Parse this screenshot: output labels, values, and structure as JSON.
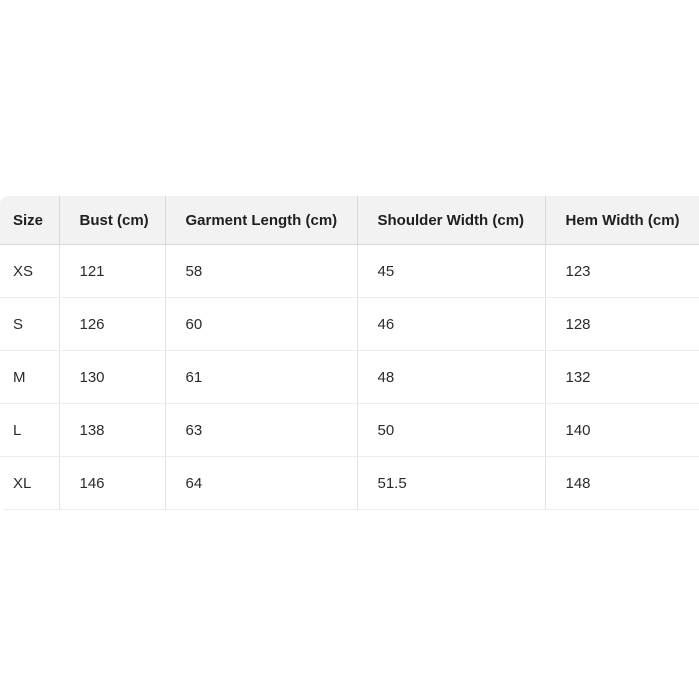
{
  "size_chart": {
    "columns": [
      "Size",
      "Bust (cm)",
      "Garment Length (cm)",
      "Shoulder Width (cm)",
      "Hem Width (cm)"
    ],
    "rows": [
      [
        "XS",
        "121",
        "58",
        "45",
        "123"
      ],
      [
        "S",
        "126",
        "60",
        "46",
        "128"
      ],
      [
        "M",
        "130",
        "61",
        "48",
        "132"
      ],
      [
        "L",
        "138",
        "63",
        "50",
        "140"
      ],
      [
        "XL",
        "146",
        "64",
        "51.5",
        "148"
      ]
    ]
  },
  "colors": {
    "page_background": "#ffffff",
    "header_background": "#f2f2f2",
    "header_border": "#d9d9d9",
    "row_border": "#ededed",
    "column_border": "#e3e3e3",
    "text": "#212529"
  }
}
